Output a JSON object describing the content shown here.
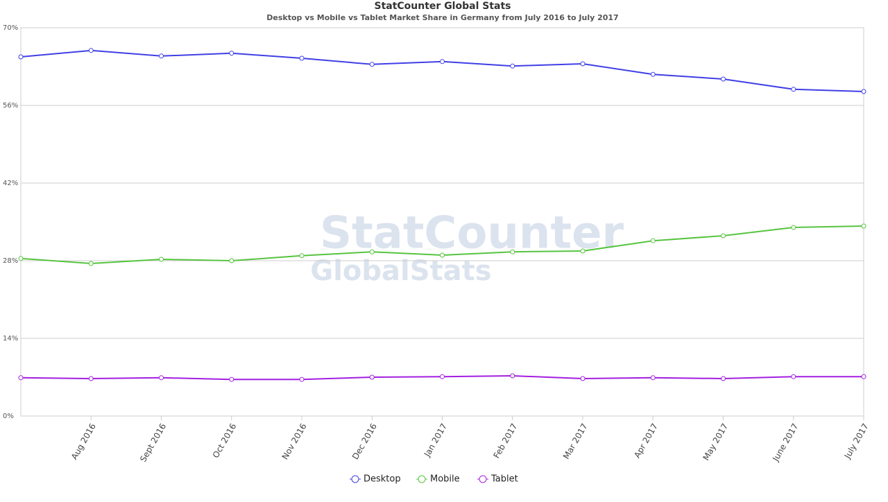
{
  "chart_data": {
    "type": "line",
    "title": "StatCounter Global Stats",
    "subtitle": "Desktop vs Mobile vs Tablet Market Share in Germany from July 2016 to July 2017",
    "watermark": [
      "StatCounter",
      "GlobalStats"
    ],
    "categories": [
      null,
      "Aug 2016",
      "Sept 2016",
      "Oct 2016",
      "Nov 2016",
      "Dec 2016",
      "Jan 2017",
      "Feb 2017",
      "Mar 2017",
      "Apr 2017",
      "May 2017",
      "June 2017",
      "July 2017"
    ],
    "series": [
      {
        "name": "Desktop",
        "color": "#3f3fe6",
        "values": [
          64.75,
          65.9,
          64.9,
          65.4,
          64.5,
          63.4,
          63.9,
          63.1,
          63.5,
          61.6,
          60.75,
          58.9,
          58.5
        ]
      },
      {
        "name": "Mobile",
        "color": "#56c43f",
        "values": [
          28.4,
          27.5,
          28.25,
          28.0,
          28.9,
          29.6,
          29.0,
          29.6,
          29.75,
          31.6,
          32.5,
          34.0,
          34.25
        ]
      },
      {
        "name": "Tablet",
        "color": "#a31ee0",
        "values": [
          6.9,
          6.75,
          6.9,
          6.6,
          6.6,
          7.0,
          7.1,
          7.25,
          6.75,
          6.9,
          6.75,
          7.1,
          7.1
        ]
      }
    ],
    "ylim": [
      0,
      70
    ],
    "yticks": [
      {
        "value": 0,
        "label": "0%"
      },
      {
        "value": 14,
        "label": "14%"
      },
      {
        "value": 28,
        "label": "28%"
      },
      {
        "value": 42,
        "label": "42%"
      },
      {
        "value": 56,
        "label": "56%"
      },
      {
        "value": 70,
        "label": "70%"
      }
    ],
    "grid": true,
    "legend": "bottom"
  }
}
